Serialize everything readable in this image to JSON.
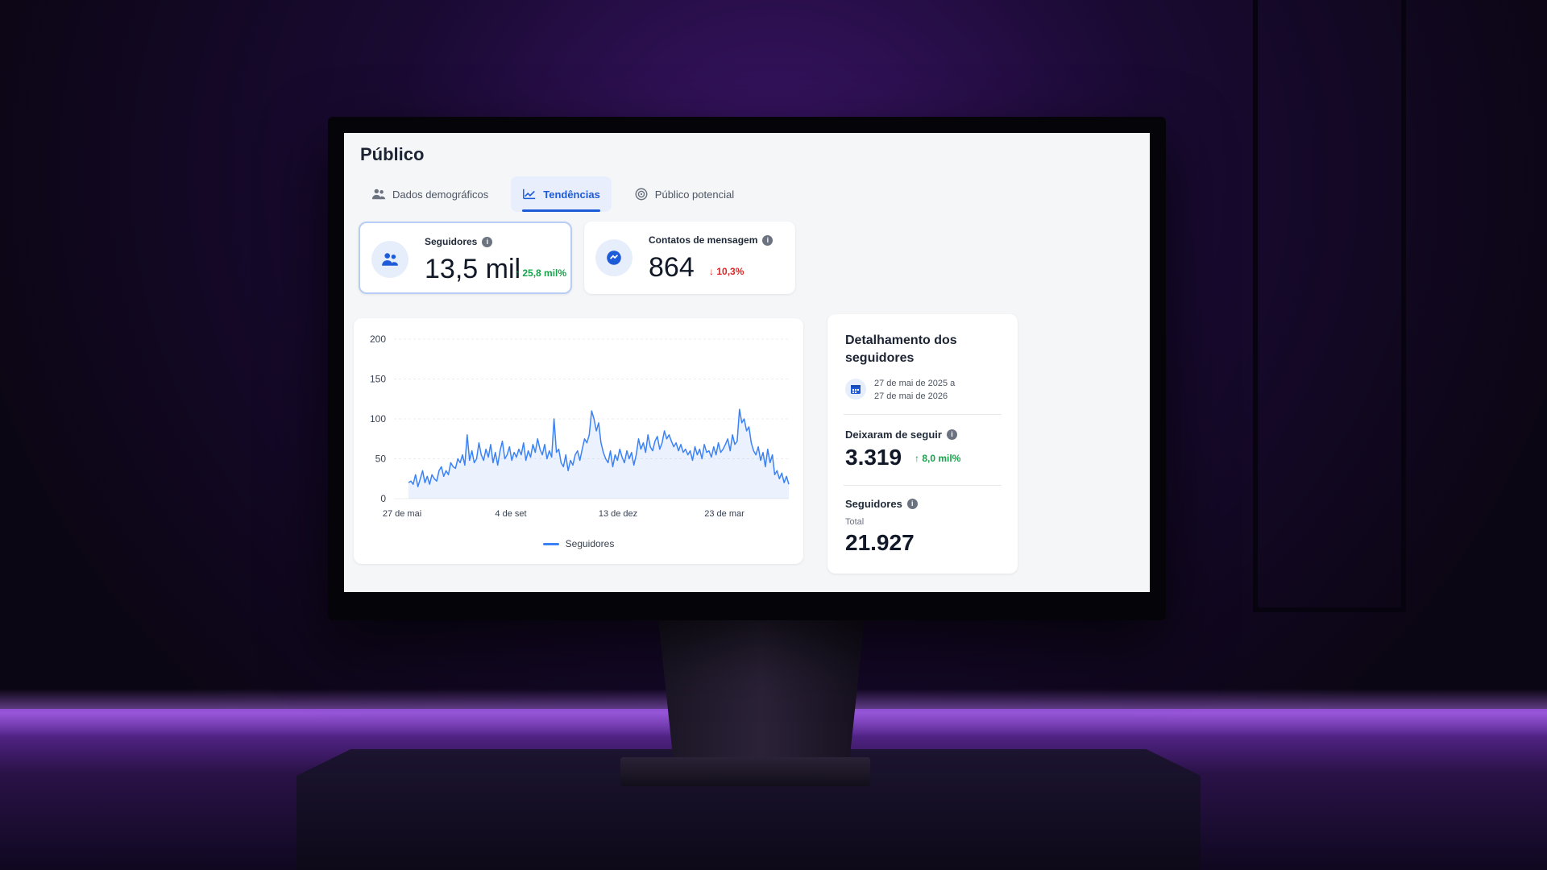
{
  "page": {
    "title": "Público"
  },
  "tabs": [
    {
      "label": "Dados demográficos",
      "icon": "people-icon",
      "active": false
    },
    {
      "label": "Tendências",
      "icon": "trend-icon",
      "active": true
    },
    {
      "label": "Público potencial",
      "icon": "target-icon",
      "active": false
    }
  ],
  "metrics": {
    "followers": {
      "label": "Seguidores",
      "value": "13,5 mil",
      "delta": "25,8 mil%",
      "direction": "up"
    },
    "message_contacts": {
      "label": "Contatos de mensagem",
      "value": "864",
      "delta": "10,3%",
      "direction": "down"
    }
  },
  "breakdown": {
    "title": "Detalhamento dos seguidores",
    "date_range_line1": "27 de mai de 2025 a",
    "date_range_line2": "27 de mai de 2026",
    "unfollowed": {
      "label": "Deixaram de seguir",
      "value": "3.319",
      "delta": "8,0 mil%",
      "direction": "up"
    },
    "followers": {
      "label": "Seguidores",
      "sublabel": "Total",
      "value": "21.927"
    }
  },
  "colors": {
    "accent": "#1e5bd8",
    "line": "#3b82f6",
    "positive": "#16a34a",
    "negative": "#dc2626"
  },
  "chart_data": {
    "type": "line",
    "x_ticks": [
      "27 de mai",
      "4 de set",
      "13 de dez",
      "23 de mar"
    ],
    "y_ticks": [
      0,
      50,
      100,
      150,
      200
    ],
    "ylim": [
      0,
      200
    ],
    "legend": "top-bottom-center",
    "grid": true,
    "series": [
      {
        "name": "Seguidores",
        "values": [
          20,
          22,
          18,
          30,
          15,
          25,
          35,
          20,
          28,
          18,
          30,
          25,
          22,
          35,
          40,
          28,
          35,
          30,
          45,
          40,
          38,
          50,
          45,
          55,
          42,
          80,
          48,
          60,
          45,
          50,
          70,
          55,
          48,
          62,
          52,
          68,
          45,
          58,
          42,
          60,
          72,
          50,
          55,
          65,
          48,
          58,
          52,
          62,
          55,
          70,
          48,
          60,
          52,
          68,
          58,
          75,
          62,
          55,
          68,
          50,
          60,
          52,
          100,
          58,
          62,
          45,
          40,
          55,
          35,
          48,
          42,
          55,
          60,
          48,
          62,
          75,
          70,
          80,
          110,
          100,
          85,
          95,
          70,
          58,
          50,
          45,
          60,
          40,
          55,
          48,
          62,
          52,
          45,
          60,
          50,
          58,
          42,
          55,
          75,
          62,
          70,
          58,
          80,
          65,
          60,
          72,
          78,
          62,
          70,
          85,
          75,
          80,
          72,
          65,
          70,
          60,
          68,
          58,
          62,
          55,
          60,
          48,
          65,
          55,
          62,
          50,
          68,
          58,
          60,
          52,
          65,
          55,
          70,
          58,
          62,
          68,
          75,
          60,
          80,
          68,
          72,
          112,
          95,
          100,
          85,
          90,
          70,
          60,
          55,
          65,
          48,
          58,
          40,
          62,
          45,
          55,
          30,
          35,
          25,
          32,
          20,
          28,
          18
        ]
      }
    ]
  }
}
